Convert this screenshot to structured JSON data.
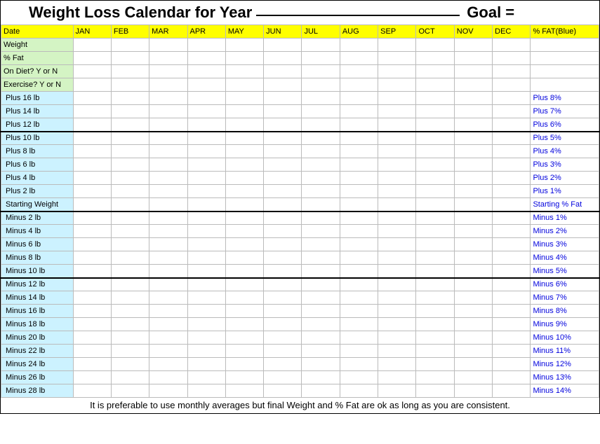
{
  "title_prefix": "Weight Loss Calendar for Year",
  "goal_label": "Goal =",
  "header": {
    "first": "Date",
    "months": [
      "JAN",
      "FEB",
      "MAR",
      "APR",
      "MAY",
      "JUN",
      "JUL",
      "AUG",
      "SEP",
      "OCT",
      "NOV",
      "DEC"
    ],
    "last": "% FAT(Blue)"
  },
  "green_rows": [
    "Weight",
    "% Fat",
    "On Diet? Y or N",
    "Exercise? Y or N"
  ],
  "chart_rows": [
    {
      "left": "Plus 16 lb",
      "right": "Plus 8%",
      "thick": false
    },
    {
      "left": "Plus 14 lb",
      "right": "Plus 7%",
      "thick": false
    },
    {
      "left": "Plus 12 lb",
      "right": "Plus 6%",
      "thick": true
    },
    {
      "left": "Plus 10 lb",
      "right": "Plus 5%",
      "thick": false
    },
    {
      "left": "Plus 8 lb",
      "right": "Plus 4%",
      "thick": false
    },
    {
      "left": "Plus 6 lb",
      "right": "Plus 3%",
      "thick": false
    },
    {
      "left": "Plus 4 lb",
      "right": "Plus 2%",
      "thick": false
    },
    {
      "left": "Plus 2 lb",
      "right": "Plus 1%",
      "thick": false
    },
    {
      "left": "Starting Weight",
      "right": "Starting % Fat",
      "thick": true
    },
    {
      "left": "Minus 2 lb",
      "right": "Minus 1%",
      "thick": false
    },
    {
      "left": "Minus 4 lb",
      "right": "Minus 2%",
      "thick": false
    },
    {
      "left": "Minus 6 lb",
      "right": "Minus 3%",
      "thick": false
    },
    {
      "left": "Minus 8 lb",
      "right": "Minus 4%",
      "thick": false
    },
    {
      "left": "Minus 10 lb",
      "right": "Minus 5%",
      "thick": true
    },
    {
      "left": "Minus 12 lb",
      "right": "Minus 6%",
      "thick": false
    },
    {
      "left": "Minus 14 lb",
      "right": "Minus 7%",
      "thick": false
    },
    {
      "left": "Minus 16 lb",
      "right": "Minus 8%",
      "thick": false
    },
    {
      "left": "Minus 18 lb",
      "right": "Minus 9%",
      "thick": false
    },
    {
      "left": "Minus 20 lb",
      "right": "Minus 10%",
      "thick": false
    },
    {
      "left": "Minus 22 lb",
      "right": "Minus 11%",
      "thick": false
    },
    {
      "left": "Minus 24 lb",
      "right": "Minus 12%",
      "thick": false
    },
    {
      "left": "Minus 26 lb",
      "right": "Minus 13%",
      "thick": false
    },
    {
      "left": "Minus 28 lb",
      "right": "Minus 14%",
      "thick": false
    }
  ],
  "footer": "It is preferable to use monthly averages but final Weight and % Fat are ok as long as you are consistent.",
  "colors": {
    "header_bg": "#ffff00",
    "green_bg": "#d4f4c4",
    "blue_bg": "#ccf2ff",
    "blue_text": "#0000dd",
    "grid": "#bbbbbb"
  }
}
